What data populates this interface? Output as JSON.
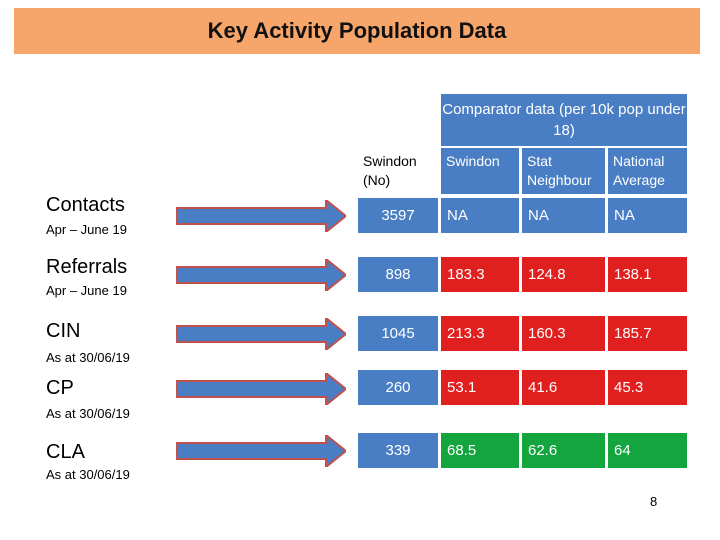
{
  "title": "Key Activity Population Data",
  "comparator_header": "Comparator data (per 10k pop under 18)",
  "columns": [
    "Swindon (No)",
    "Swindon",
    "Stat Neighbour",
    "National Average"
  ],
  "rows": [
    {
      "label": "Contacts",
      "sub": "Apr – June 19",
      "swindon_no": "3597",
      "swindon": "NA",
      "stat_neighbour": "NA",
      "national": "NA"
    },
    {
      "label": "Referrals",
      "sub": "Apr – June 19",
      "swindon_no": "898",
      "swindon": "183.3",
      "stat_neighbour": "124.8",
      "national": "138.1"
    },
    {
      "label": "CIN",
      "sub": "As at 30/06/19",
      "swindon_no": "1045",
      "swindon": "213.3",
      "stat_neighbour": "160.3",
      "national": "185.7"
    },
    {
      "label": "CP",
      "sub": "As at 30/06/19",
      "swindon_no": "260",
      "swindon": "53.1",
      "stat_neighbour": "41.6",
      "national": "45.3"
    },
    {
      "label": "CLA",
      "sub": "As at 30/06/19",
      "swindon_no": "339",
      "swindon": "68.5",
      "stat_neighbour": "62.6",
      "national": "64"
    }
  ],
  "colors": {
    "header_orange": "#f6a66a",
    "blue": "#4a7ec4",
    "red": "#e01f1f",
    "green": "#14a53f"
  },
  "page_number": "8"
}
